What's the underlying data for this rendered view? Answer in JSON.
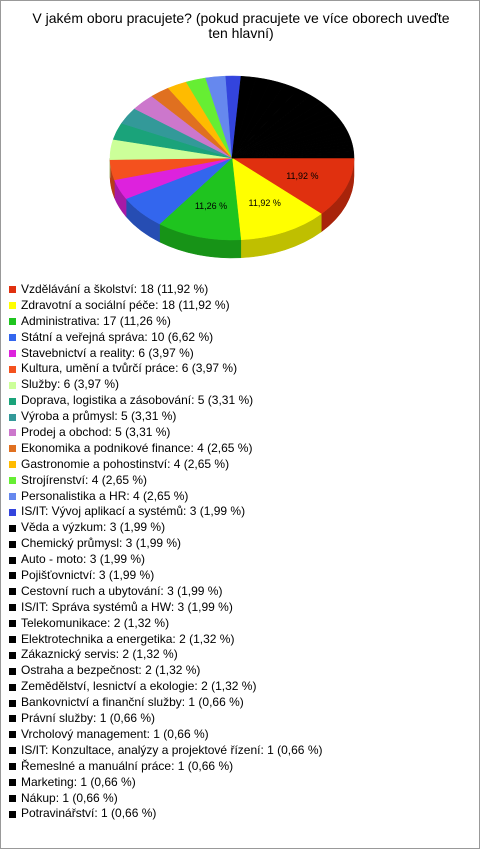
{
  "chart_data": {
    "type": "pie",
    "title": "V jakém oboru pracujete? (pokud pracujete ve více oborech uveďte ten hlavní)",
    "categories": [
      "Vzdělávání a školství: 18 (11,92 %)",
      "Zdravotní a sociální péče: 18 (11,92 %)",
      "Administrativa: 17 (11,26 %)",
      "Státní a veřejná správa: 10 (6,62 %)",
      "Stavebnictví a reality: 6 (3,97 %)",
      "Kultura, umění a tvůrčí práce: 6 (3,97 %)",
      "Služby: 6 (3,97 %)",
      "Doprava, logistika a zásobování: 5 (3,31 %)",
      "Výroba a průmysl: 5 (3,31 %)",
      "Prodej a obchod: 5 (3,31 %)",
      "Ekonomika a podnikové finance: 4 (2,65 %)",
      "Gastronomie a pohostinství: 4 (2,65 %)",
      "Strojírenství: 4 (2,65 %)",
      "Personalistika a HR: 4 (2,65 %)",
      "IS/IT: Vývoj aplikací a systémů: 3 (1,99 %)",
      "Věda a výzkum: 3 (1,99 %)",
      "Chemický průmysl: 3 (1,99 %)",
      "Auto - moto: 3 (1,99 %)",
      "Pojišťovnictví: 3 (1,99 %)",
      "Cestovní ruch a ubytování: 3 (1,99 %)",
      "IS/IT: Správa systémů a HW: 3 (1,99 %)",
      "Telekomunikace: 2 (1,32 %)",
      "Elektrotechnika a energetika: 2 (1,32 %)",
      "Zákaznický servis: 2 (1,32 %)",
      "Ostraha a bezpečnost: 2 (1,32 %)",
      "Zemědělství, lesnictví a ekologie: 2 (1,32 %)",
      "Bankovnictví a finanční služby: 1 (0,66 %)",
      "Právní služby: 1 (0,66 %)",
      "Vrcholový management: 1 (0,66 %)",
      "IS/IT: Konzultace, analýzy a projektové řízení: 1 (0,66 %)",
      "Řemeslné a manuální práce: 1 (0,66 %)",
      "Marketing: 1 (0,66 %)",
      "Nákup: 1 (0,66 %)",
      "Potravinářství: 1 (0,66 %)"
    ],
    "values": [
      11.92,
      11.92,
      11.26,
      6.62,
      3.97,
      3.97,
      3.97,
      3.31,
      3.31,
      3.31,
      2.65,
      2.65,
      2.65,
      2.65,
      1.99,
      1.99,
      1.99,
      1.99,
      1.99,
      1.99,
      1.99,
      1.32,
      1.32,
      1.32,
      1.32,
      1.32,
      0.66,
      0.66,
      0.66,
      0.66,
      0.66,
      0.66,
      0.66,
      0.66
    ],
    "value_labels": [
      "11,92 %",
      "11,92 %",
      "11,26 %",
      null,
      null,
      null,
      null,
      null,
      null,
      null,
      null,
      null,
      null,
      null,
      null,
      null,
      null,
      null,
      null,
      null,
      null,
      null,
      null,
      null,
      null,
      null,
      null,
      null,
      null,
      null,
      null,
      null,
      null,
      null
    ],
    "colors": [
      "#e0300f",
      "#ffff00",
      "#1fc41f",
      "#3366ee",
      "#dd22dd",
      "#f4511e",
      "#ccff99",
      "#1aa37a",
      "#339999",
      "#cc77cc",
      "#e07020",
      "#ffbb00",
      "#66ee33",
      "#6688ee",
      "#3344dd",
      "#000000",
      "#000000",
      "#000000",
      "#000000",
      "#000000",
      "#000000",
      "#000000",
      "#000000",
      "#000000",
      "#000000",
      "#000000",
      "#000000",
      "#000000",
      "#000000",
      "#000000",
      "#000000",
      "#000000",
      "#000000",
      "#000000"
    ]
  }
}
